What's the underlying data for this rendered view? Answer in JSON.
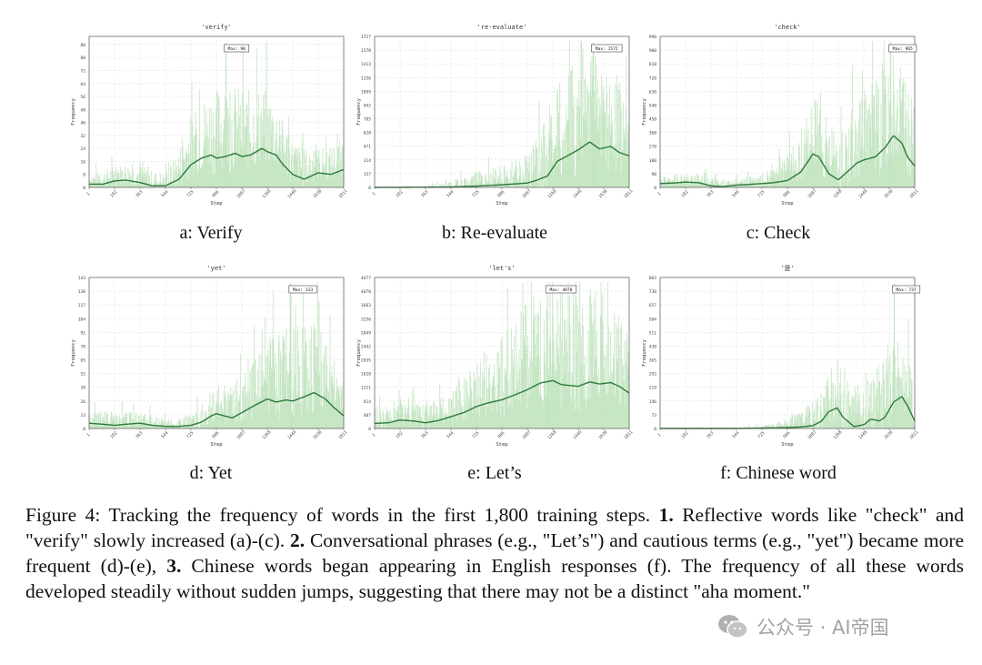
{
  "caption": {
    "label": "Figure 4:",
    "text_1": "Tracking the frequency of words in the first 1,800 training steps.",
    "num_1": "1.",
    "text_2": "Reflective words like \"check\" and \"verify\" slowly increased (a)-(c).",
    "num_2": "2.",
    "text_3": "Conversational phrases (e.g., \"Let’s\") and cautious terms (e.g., \"yet\") became more frequent (d)-(e),",
    "num_3": "3.",
    "text_4": "Chinese words began appearing in English responses (f). The frequency of all these words developed steadily without sudden jumps, suggesting that there may not be a distinct \"aha moment.\""
  },
  "watermark": {
    "text": "公众号 · AI帝国",
    "icon": "wechat-icon",
    "color": "#9a9a9a"
  },
  "colors": {
    "bar": "#bfe3bd",
    "line": "#2d7a3a",
    "grid": "#d9d9d9",
    "axis": "#555555"
  },
  "chart_data": [
    {
      "type": "line",
      "title": "'verify'",
      "subcaption": "a: Verify",
      "xlabel": "Step",
      "ylabel": "Frequency",
      "max_label": "Max: 90",
      "max_x": 975,
      "xticks": [
        "1",
        "182",
        "363",
        "544",
        "725",
        "906",
        "1087",
        "1268",
        "1449",
        "1630",
        "1811"
      ],
      "yticks": [
        "8",
        "16",
        "24",
        "32",
        "40",
        "48",
        "56",
        "64",
        "72",
        "80",
        "88"
      ],
      "ylim": [
        0,
        93
      ],
      "grid": true,
      "bars": "per-step frequency (light green)",
      "smoothed": {
        "x": [
          1,
          100,
          182,
          260,
          363,
          450,
          544,
          640,
          725,
          800,
          870,
          906,
          970,
          1040,
          1087,
          1150,
          1230,
          1268,
          1330,
          1380,
          1449,
          1530,
          1630,
          1720,
          1811
        ],
        "y": [
          2,
          2,
          4,
          4.5,
          3,
          1,
          1,
          5,
          14,
          18,
          20,
          18,
          19,
          21,
          19,
          20,
          24,
          22,
          20,
          14,
          8,
          5,
          9,
          8,
          11
        ]
      },
      "spread": {
        "x": [
          1,
          182,
          363,
          544,
          725,
          906,
          1087,
          1268,
          1449,
          1630,
          1811
        ],
        "y": [
          6,
          9,
          10,
          7,
          28,
          40,
          38,
          34,
          20,
          14,
          18
        ]
      }
    },
    {
      "type": "line",
      "title": "'re-evaluate'",
      "subcaption": "b: Re-evaluate",
      "xlabel": "Step",
      "ylabel": "Frequency",
      "max_label": "Max: 1572",
      "max_x": 1555,
      "xticks": [
        "1",
        "182",
        "363",
        "544",
        "725",
        "906",
        "1087",
        "1268",
        "1449",
        "1630",
        "1811"
      ],
      "yticks": [
        "157",
        "314",
        "471",
        "628",
        "785",
        "942",
        "1099",
        "1256",
        "1413",
        "1570",
        "1727"
      ],
      "ylim": [
        0,
        1727
      ],
      "grid": true,
      "bars": "per-step frequency (light green)",
      "smoothed": {
        "x": [
          1,
          363,
          544,
          725,
          906,
          1000,
          1087,
          1150,
          1230,
          1300,
          1360,
          1449,
          1530,
          1600,
          1680,
          1740,
          1811
        ],
        "y": [
          0,
          2,
          5,
          15,
          30,
          40,
          50,
          80,
          130,
          300,
          350,
          430,
          520,
          440,
          470,
          400,
          360
        ]
      },
      "spread": {
        "x": [
          1,
          363,
          544,
          725,
          906,
          1087,
          1268,
          1449,
          1630,
          1811
        ],
        "y": [
          5,
          15,
          60,
          150,
          200,
          300,
          700,
          1100,
          1000,
          700
        ]
      }
    },
    {
      "type": "line",
      "title": "'check'",
      "subcaption": "c: Check",
      "xlabel": "Step",
      "ylabel": "Frequency",
      "max_label": "Max: 965",
      "max_x": 1640,
      "xticks": [
        "1",
        "182",
        "363",
        "544",
        "725",
        "906",
        "1087",
        "1268",
        "1449",
        "1630",
        "1811"
      ],
      "yticks": [
        "90",
        "180",
        "270",
        "360",
        "450",
        "540",
        "630",
        "720",
        "810",
        "900",
        "990"
      ],
      "ylim": [
        0,
        990
      ],
      "grid": true,
      "bars": "per-step frequency (light green)",
      "smoothed": {
        "x": [
          1,
          120,
          182,
          280,
          363,
          450,
          544,
          640,
          725,
          800,
          906,
          1000,
          1060,
          1087,
          1130,
          1200,
          1268,
          1330,
          1400,
          1449,
          1530,
          1600,
          1660,
          1720,
          1760,
          1811
        ],
        "y": [
          25,
          30,
          35,
          30,
          10,
          5,
          15,
          20,
          25,
          30,
          45,
          100,
          180,
          220,
          200,
          90,
          50,
          100,
          160,
          180,
          200,
          260,
          340,
          290,
          200,
          140
        ]
      },
      "spread": {
        "x": [
          1,
          182,
          363,
          544,
          725,
          906,
          1087,
          1268,
          1449,
          1630,
          1811
        ],
        "y": [
          40,
          60,
          50,
          40,
          60,
          150,
          350,
          280,
          450,
          600,
          350
        ]
      }
    },
    {
      "type": "line",
      "title": "'yet'",
      "subcaption": "d: Yet",
      "xlabel": "Step",
      "ylabel": "Frequency",
      "max_label": "Max: 133",
      "max_x": 1435,
      "xticks": [
        "1",
        "182",
        "363",
        "544",
        "725",
        "906",
        "1087",
        "1268",
        "1449",
        "1630",
        "1811"
      ],
      "yticks": [
        "13",
        "26",
        "39",
        "52",
        "65",
        "78",
        "91",
        "104",
        "117",
        "130",
        "143"
      ],
      "ylim": [
        0,
        143
      ],
      "grid": true,
      "bars": "per-step frequency (light green)",
      "smoothed": {
        "x": [
          1,
          100,
          182,
          260,
          363,
          450,
          544,
          640,
          725,
          800,
          870,
          906,
          960,
          1020,
          1087,
          1180,
          1268,
          1330,
          1400,
          1449,
          1530,
          1600,
          1680,
          1740,
          1811
        ],
        "y": [
          5,
          4,
          3,
          4,
          5,
          3,
          2,
          2,
          3,
          6,
          12,
          14,
          12,
          10,
          15,
          22,
          28,
          25,
          27,
          26,
          30,
          34,
          28,
          20,
          12
        ]
      },
      "spread": {
        "x": [
          1,
          182,
          363,
          544,
          725,
          906,
          1087,
          1268,
          1449,
          1630,
          1811
        ],
        "y": [
          10,
          12,
          12,
          6,
          10,
          25,
          30,
          55,
          70,
          60,
          30
        ]
      }
    },
    {
      "type": "line",
      "title": "'let's'",
      "subcaption": "e: Let’s",
      "xlabel": "Step",
      "ylabel": "Frequency",
      "max_label": "Max: 4078",
      "max_x": 1230,
      "xticks": [
        "1",
        "182",
        "363",
        "544",
        "725",
        "906",
        "1087",
        "1268",
        "1449",
        "1630",
        "1811"
      ],
      "yticks": [
        "407",
        "814",
        "1221",
        "1628",
        "2035",
        "2442",
        "2849",
        "3256",
        "3663",
        "4070",
        "4477"
      ],
      "ylim": [
        0,
        4477
      ],
      "grid": true,
      "bars": "per-step frequency (light green)",
      "smoothed": {
        "x": [
          1,
          100,
          182,
          280,
          363,
          450,
          544,
          640,
          725,
          800,
          906,
          1000,
          1087,
          1180,
          1268,
          1330,
          1400,
          1449,
          1530,
          1600,
          1680,
          1740,
          1811
        ],
        "y": [
          150,
          170,
          250,
          220,
          170,
          230,
          350,
          480,
          650,
          750,
          850,
          1000,
          1150,
          1350,
          1420,
          1300,
          1270,
          1250,
          1380,
          1320,
          1360,
          1250,
          1050
        ]
      },
      "spread": {
        "x": [
          1,
          182,
          363,
          544,
          725,
          906,
          1087,
          1268,
          1449,
          1630,
          1811
        ],
        "y": [
          400,
          600,
          500,
          700,
          1300,
          1800,
          2400,
          2800,
          2700,
          2400,
          1700
        ]
      }
    },
    {
      "type": "line",
      "title": "'是'",
      "subcaption": "f: Chinese word",
      "xlabel": "Step",
      "ylabel": "Frequency",
      "max_label": "Max: 737",
      "max_x": 1665,
      "xticks": [
        "1",
        "182",
        "363",
        "544",
        "725",
        "906",
        "1087",
        "1268",
        "1449",
        "1630",
        "1811"
      ],
      "yticks": [
        "73",
        "146",
        "219",
        "292",
        "365",
        "438",
        "511",
        "584",
        "657",
        "730",
        "803"
      ],
      "ylim": [
        0,
        803
      ],
      "grid": true,
      "bars": "per-step frequency (light green)",
      "smoothed": {
        "x": [
          1,
          544,
          725,
          906,
          1000,
          1087,
          1150,
          1200,
          1260,
          1300,
          1380,
          1449,
          1500,
          1560,
          1600,
          1660,
          1720,
          1760,
          1811
        ],
        "y": [
          0,
          0,
          2,
          5,
          8,
          15,
          40,
          90,
          110,
          60,
          10,
          20,
          50,
          40,
          60,
          140,
          170,
          120,
          40
        ]
      },
      "spread": {
        "x": [
          1,
          544,
          725,
          906,
          1087,
          1268,
          1449,
          1630,
          1811
        ],
        "y": [
          3,
          5,
          15,
          40,
          120,
          250,
          160,
          350,
          200
        ]
      }
    }
  ]
}
